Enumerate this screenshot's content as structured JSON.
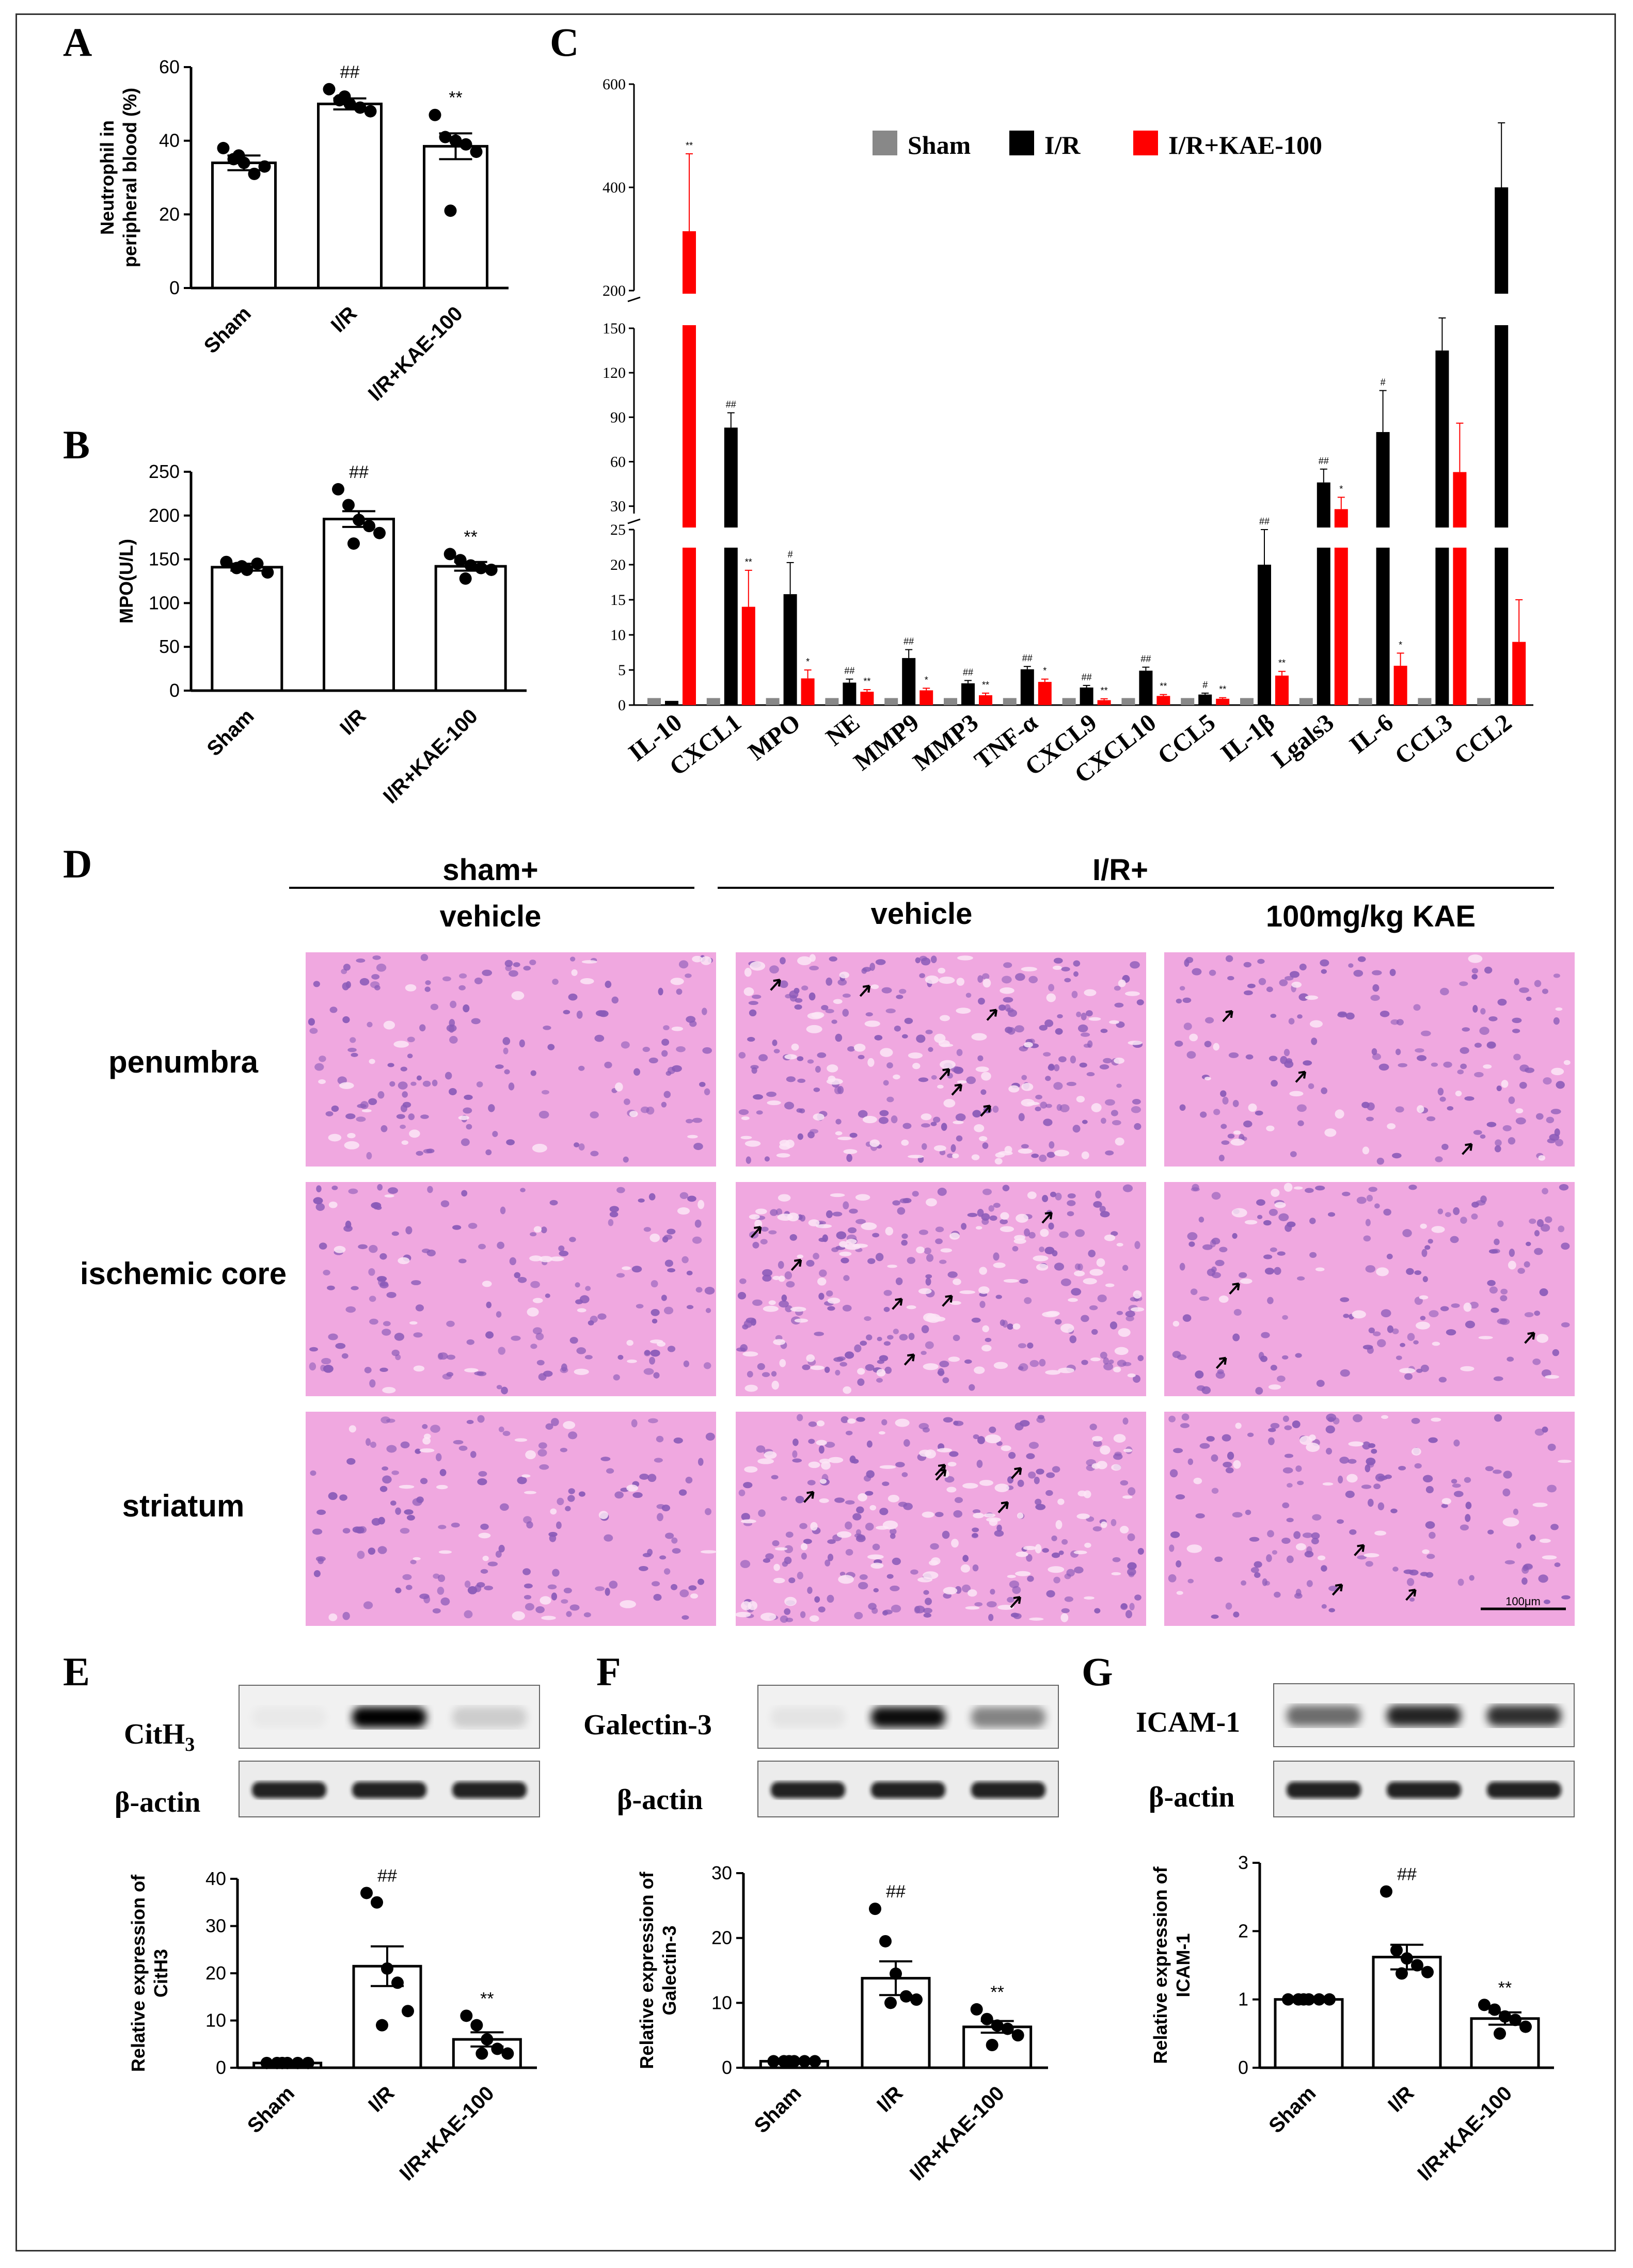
{
  "panel_letters": {
    "A": "A",
    "B": "B",
    "C": "C",
    "D": "D",
    "E": "E",
    "F": "F",
    "G": "G"
  },
  "chart_data": [
    {
      "id": "A",
      "type": "bar",
      "ylabel_line1": "Neutrophil in",
      "ylabel_line2": "peripheral blood (%)",
      "ylim": [
        0,
        60
      ],
      "yticks": [
        0,
        20,
        40,
        60
      ],
      "categories": [
        "Sham",
        "I/R",
        "I/R+KAE-100"
      ],
      "values": [
        34,
        50,
        38.5
      ],
      "sem": [
        2,
        1.5,
        3.5
      ],
      "significance": [
        "",
        "##",
        "**"
      ],
      "points": [
        [
          38,
          35,
          34,
          31,
          33,
          36
        ],
        [
          54,
          51,
          50,
          49,
          48,
          52
        ],
        [
          47,
          41,
          40,
          39,
          37,
          21
        ]
      ]
    },
    {
      "id": "B",
      "type": "bar",
      "ylabel": "MPO(U/L)",
      "ylim": [
        0,
        250
      ],
      "yticks": [
        0,
        50,
        100,
        150,
        200,
        250
      ],
      "categories": [
        "Sham",
        "I/R",
        "I/R+KAE-100"
      ],
      "values": [
        141,
        196,
        142
      ],
      "sem": [
        4,
        9,
        5
      ],
      "significance": [
        "",
        "##",
        "**"
      ],
      "points": [
        [
          147,
          140,
          138,
          145,
          135,
          142
        ],
        [
          230,
          212,
          195,
          188,
          180,
          168
        ],
        [
          156,
          149,
          143,
          140,
          138,
          128
        ]
      ]
    },
    {
      "id": "C",
      "type": "bar",
      "broken_axis": true,
      "segments": [
        {
          "range": [
            0,
            25
          ],
          "ticks": [
            0,
            5,
            10,
            15,
            20,
            25
          ]
        },
        {
          "range": [
            25,
            150
          ],
          "ticks": [
            30,
            60,
            90,
            120,
            150
          ]
        },
        {
          "range": [
            200,
            600
          ],
          "ticks": [
            200,
            400,
            600
          ]
        }
      ],
      "categories": [
        "IL-10",
        "CXCL1",
        "MPO",
        "NE",
        "MMP9",
        "MMP3",
        "TNF-α",
        "CXCL9",
        "CXCL10",
        "CCL5",
        "IL-1β",
        "Lgals3",
        "IL-6",
        "CCL3",
        "CCL2"
      ],
      "legend_placement": "top",
      "series": [
        {
          "name": "Sham",
          "color": "#888888",
          "values": [
            1,
            1,
            1,
            1,
            1,
            1,
            1,
            1,
            1,
            1,
            1,
            1,
            1,
            1,
            1
          ]
        },
        {
          "name": "I/R",
          "color": "#000000",
          "values": [
            0.6,
            83,
            15.8,
            3.2,
            6.7,
            3.1,
            5.1,
            2.5,
            4.9,
            1.5,
            20,
            46,
            80,
            135,
            400
          ],
          "sem": [
            0,
            10,
            4.5,
            0.5,
            1.2,
            0.4,
            0.4,
            0.3,
            0.5,
            0.2,
            5,
            9,
            28,
            30,
            125
          ],
          "significance": [
            "",
            "##",
            "#",
            "##",
            "##",
            "##",
            "##",
            "##",
            "##",
            "#",
            "##",
            "##",
            "#",
            "",
            ""
          ]
        },
        {
          "name": "I/R+KAE-100",
          "color": "#ff0000",
          "values": [
            315,
            14,
            3.8,
            1.9,
            2.1,
            1.4,
            3.3,
            0.7,
            1.3,
            0.9,
            4.2,
            28,
            5.6,
            53,
            9
          ],
          "sem": [
            150,
            5.2,
            1.2,
            0.3,
            0.3,
            0.3,
            0.4,
            0.2,
            0.2,
            0.15,
            0.6,
            8,
            1.8,
            33,
            6
          ],
          "significance": [
            "**",
            "**",
            "*",
            "**",
            "*",
            "**",
            "*",
            "**",
            "**",
            "**",
            "**",
            "*",
            "*",
            "",
            ""
          ]
        }
      ]
    },
    {
      "id": "E",
      "type": "bar",
      "ylabel_line1": "Relative expression of",
      "ylabel_line2": "CitH3",
      "ylim": [
        0,
        40
      ],
      "yticks": [
        0,
        10,
        20,
        30,
        40
      ],
      "categories": [
        "Sham",
        "I/R",
        "I/R+KAE-100"
      ],
      "values": [
        1,
        21.5,
        6
      ],
      "sem": [
        0,
        4.2,
        1.5
      ],
      "significance": [
        "",
        "##",
        "**"
      ],
      "points": [
        [
          1,
          1,
          1,
          1,
          1,
          1
        ],
        [
          37,
          35,
          21,
          18,
          12,
          9
        ],
        [
          11,
          9,
          6,
          4,
          3,
          3
        ]
      ]
    },
    {
      "id": "F",
      "type": "bar",
      "ylabel_line1": "Relative expression of",
      "ylabel_line2": "Galectin-3",
      "ylim": [
        0,
        30
      ],
      "yticks": [
        0,
        10,
        20,
        30
      ],
      "categories": [
        "Sham",
        "I/R",
        "I/R+KAE-100"
      ],
      "values": [
        1,
        13.8,
        6.3
      ],
      "sem": [
        0,
        2.6,
        0.9
      ],
      "significance": [
        "",
        "##",
        "**"
      ],
      "points": [
        [
          1,
          1,
          1,
          1,
          1,
          1
        ],
        [
          24.5,
          19.5,
          14.5,
          11,
          10.5,
          10
        ],
        [
          9,
          7.5,
          6.5,
          6,
          5,
          3.5
        ]
      ]
    },
    {
      "id": "G",
      "type": "bar",
      "ylabel_line1": "Relative expression of",
      "ylabel_line2": "ICAM-1",
      "ylim": [
        0,
        3
      ],
      "yticks": [
        0,
        1,
        2,
        3
      ],
      "categories": [
        "Sham",
        "I/R",
        "I/R+KAE-100"
      ],
      "values": [
        1,
        1.62,
        0.72
      ],
      "sem": [
        0,
        0.18,
        0.09
      ],
      "significance": [
        "",
        "##",
        "**"
      ],
      "points": [
        [
          1,
          1,
          1,
          1,
          1,
          1
        ],
        [
          2.58,
          1.72,
          1.6,
          1.5,
          1.4,
          1.38
        ],
        [
          0.92,
          0.85,
          0.75,
          0.7,
          0.6,
          0.5
        ]
      ]
    }
  ],
  "histology": {
    "group_headers": {
      "sham": "sham+",
      "ir": "I/R+"
    },
    "columns": [
      "vehicle",
      "vehicle",
      "100mg/kg KAE"
    ],
    "rows": [
      "penumbra",
      "ischemic core",
      "striatum"
    ],
    "scale_bar": "100μm",
    "tissue_color": "#f0a8e0",
    "nuclei_color": "#8a5ab8"
  },
  "blots": {
    "E": {
      "target": "CitH",
      "target_sub": "3",
      "loading": "β-actin",
      "intensity": [
        0.03,
        1,
        0.15
      ]
    },
    "F": {
      "target": "Galectin-3",
      "loading": "β-actin",
      "intensity": [
        0.05,
        0.95,
        0.45
      ]
    },
    "G": {
      "target": "ICAM-1",
      "loading": "β-actin",
      "intensity": [
        0.55,
        0.85,
        0.8
      ]
    }
  }
}
